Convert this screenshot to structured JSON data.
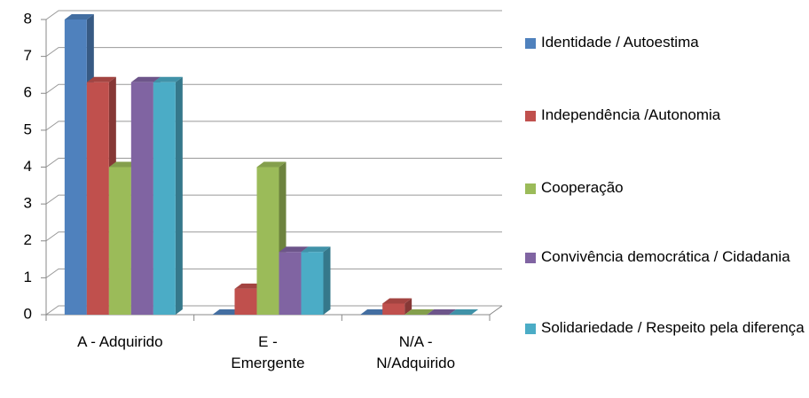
{
  "chart_data": {
    "type": "bar3d",
    "categories": [
      "A - Adquirido",
      "E - Emergente",
      "N/A - N/Adquirido"
    ],
    "series": [
      {
        "name": "Identidade / Autoestima",
        "color": "#4f81bd",
        "values": [
          8,
          0,
          0
        ]
      },
      {
        "name": "Independência /Autonomia",
        "color": "#c0504d",
        "values": [
          6.3,
          0.7,
          0.3
        ]
      },
      {
        "name": "Cooperação",
        "color": "#9bbb59",
        "values": [
          4,
          4,
          0
        ]
      },
      {
        "name": "Convivência democrática / Cidadania",
        "color": "#8064a2",
        "values": [
          6.3,
          1.7,
          0
        ]
      },
      {
        "name": "Solidariedade / Respeito pela diferença",
        "color": "#4bacc6",
        "values": [
          6.3,
          1.7,
          0
        ]
      }
    ],
    "ylim": [
      0,
      8
    ],
    "yticks": [
      0,
      1,
      2,
      3,
      4,
      5,
      6,
      7,
      8
    ],
    "grid": true,
    "legend": "right"
  }
}
